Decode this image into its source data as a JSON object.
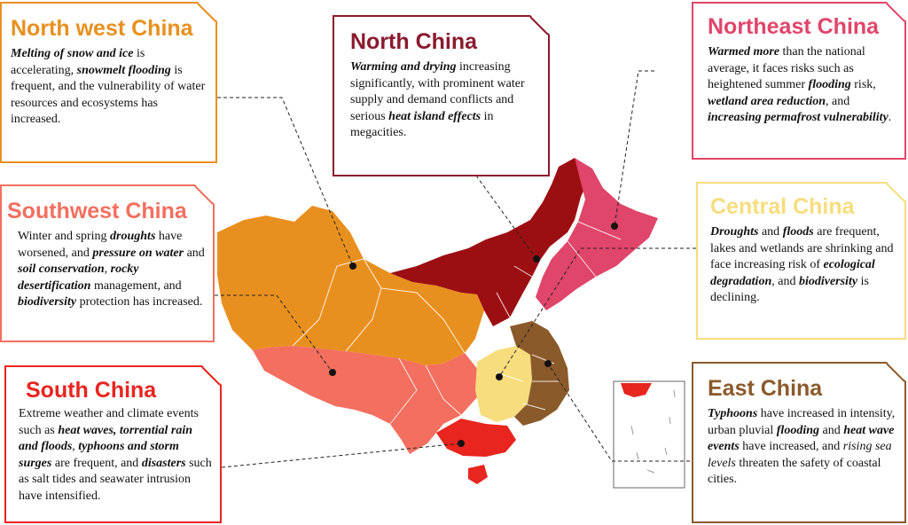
{
  "regions": {
    "northwest": {
      "title": "North west China",
      "color": "#e8901f",
      "text": [
        {
          "t": "Melting of snow and ice",
          "s": "bi"
        },
        {
          "t": " is accelerating, ",
          "s": "n"
        },
        {
          "t": "snowmelt flooding",
          "s": "bi"
        },
        {
          "t": " is frequent, and the vulnerability of water resources and ecosystems has increased.",
          "s": "n"
        }
      ]
    },
    "north": {
      "title": "North China",
      "color": "#8b1a2e",
      "text": [
        {
          "t": "Warming and drying",
          "s": "bi"
        },
        {
          "t": " increasing significantly, with prominent water supply and demand conflicts and serious ",
          "s": "n"
        },
        {
          "t": "heat island effects",
          "s": "bi"
        },
        {
          "t": " in megacities.",
          "s": "n"
        }
      ]
    },
    "northeast": {
      "title": "Northeast China",
      "color": "#e0456a",
      "text": [
        {
          "t": "Warmed more",
          "s": "bi"
        },
        {
          "t": " than the national average, it faces risks such as heightened summer ",
          "s": "n"
        },
        {
          "t": "flooding",
          "s": "bi"
        },
        {
          "t": " risk, ",
          "s": "n"
        },
        {
          "t": "wetland area reduction",
          "s": "bi"
        },
        {
          "t": ", and ",
          "s": "n"
        },
        {
          "t": "increasing permafrost vulnerability",
          "s": "bi"
        },
        {
          "t": ".",
          "s": "n"
        }
      ]
    },
    "southwest": {
      "title": "Southwest China",
      "color": "#f36f5f",
      "text": [
        {
          "t": "Winter and spring ",
          "s": "n"
        },
        {
          "t": "droughts",
          "s": "bi"
        },
        {
          "t": " have worsened, and ",
          "s": "n"
        },
        {
          "t": "pressure on water",
          "s": "bi"
        },
        {
          "t": " and ",
          "s": "n"
        },
        {
          "t": "soil conservation",
          "s": "bi"
        },
        {
          "t": ", ",
          "s": "n"
        },
        {
          "t": "rocky desertification",
          "s": "bi"
        },
        {
          "t": " management, and ",
          "s": "n"
        },
        {
          "t": "biodiversity",
          "s": "bi"
        },
        {
          "t": " protection has increased.",
          "s": "n"
        }
      ]
    },
    "central": {
      "title": "Central China",
      "color": "#f7dd7e",
      "text": [
        {
          "t": "Droughts",
          "s": "bi"
        },
        {
          "t": " and ",
          "s": "n"
        },
        {
          "t": "floods",
          "s": "bi"
        },
        {
          "t": " are frequent, lakes and wetlands are shrinking and face increasing risk of ",
          "s": "n"
        },
        {
          "t": "ecological degradation",
          "s": "bi"
        },
        {
          "t": ", and ",
          "s": "n"
        },
        {
          "t": "biodiversity",
          "s": "bi"
        },
        {
          "t": " is declining.",
          "s": "n"
        }
      ]
    },
    "south": {
      "title": "South China",
      "color": "#e8251f",
      "text": [
        {
          "t": "Extreme weather and climate events such as ",
          "s": "n"
        },
        {
          "t": "heat waves, torrential rain and floods",
          "s": "bi"
        },
        {
          "t": ", ",
          "s": "i"
        },
        {
          "t": "typhoons and storm surges",
          "s": "bi"
        },
        {
          "t": " are frequent, and ",
          "s": "n"
        },
        {
          "t": "disasters",
          "s": "bi"
        },
        {
          "t": " such as salt tides and seawater intrusion have intensified.",
          "s": "n"
        }
      ]
    },
    "east": {
      "title": "East China",
      "color": "#8b5a2b",
      "text": [
        {
          "t": "Typhoons",
          "s": "bi"
        },
        {
          "t": " have increased in intensity, urban pluvial ",
          "s": "n"
        },
        {
          "t": "flooding",
          "s": "bi"
        },
        {
          "t": " and ",
          "s": "n"
        },
        {
          "t": "heat wave events",
          "s": "bi"
        },
        {
          "t": " have increased, and ",
          "s": "n"
        },
        {
          "t": "rising sea levels",
          "s": "i"
        },
        {
          "t": " threaten the safety of coastal cities.",
          "s": "n"
        }
      ]
    }
  },
  "map_fill": {
    "tibet": "#f36f5f",
    "southwest_inner": "#f36f5f",
    "guangxi": "#f36f5f",
    "guangdong": "#e8251f",
    "hainan": "#e8251f",
    "inset_south": "#e8251f"
  }
}
